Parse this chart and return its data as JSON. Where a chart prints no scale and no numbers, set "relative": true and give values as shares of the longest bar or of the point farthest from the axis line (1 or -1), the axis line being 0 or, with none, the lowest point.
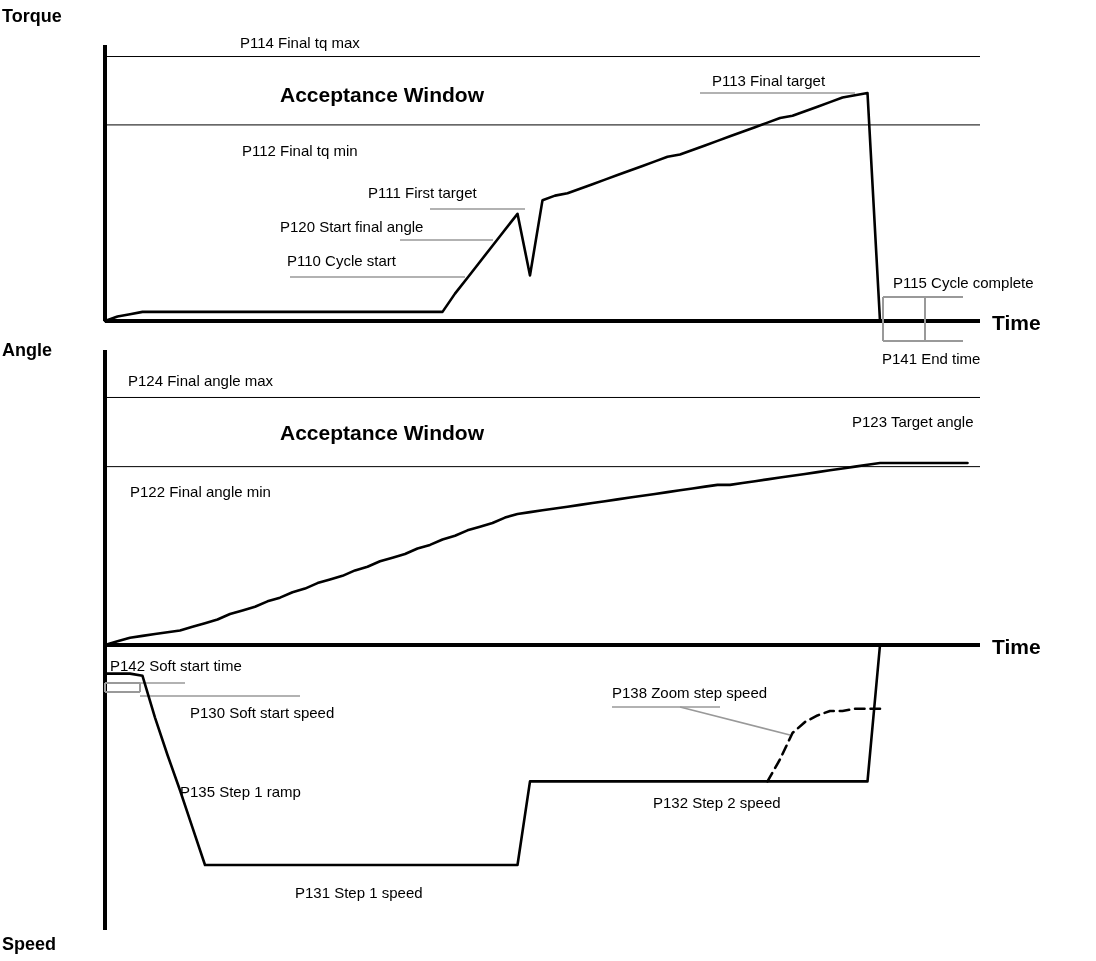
{
  "chart_data": [
    {
      "type": "line",
      "relative": true,
      "ylabel": "Torque",
      "xlabel": "Time",
      "color": "#000000",
      "categories": [
        null,
        null,
        null,
        null,
        null,
        null,
        null,
        null,
        null,
        null,
        null,
        null,
        null,
        null,
        null,
        null,
        null,
        null,
        null,
        null,
        null,
        null,
        null,
        null,
        null,
        null,
        null,
        null,
        null,
        null,
        null,
        null,
        null,
        null,
        null,
        null,
        null,
        null,
        null,
        null,
        null,
        null,
        null,
        null,
        null,
        null,
        null,
        null,
        null,
        null,
        null,
        null,
        null,
        null,
        null,
        null,
        null,
        null,
        null,
        null,
        null,
        null,
        null,
        null,
        null,
        null,
        null,
        null,
        null,
        null,
        null
      ],
      "values": [
        0,
        0.02,
        0.03,
        0.04,
        0.04,
        0.04,
        0.04,
        0.04,
        0.04,
        0.04,
        0.04,
        0.04,
        0.04,
        0.04,
        0.04,
        0.04,
        0.04,
        0.04,
        0.04,
        0.04,
        0.04,
        0.04,
        0.04,
        0.04,
        0.04,
        0.04,
        0.04,
        0.04,
        0.12,
        0.19,
        0.26,
        0.33,
        0.4,
        0.47,
        0.2,
        0.53,
        0.55,
        0.56,
        0.58,
        0.6,
        0.62,
        0.64,
        0.66,
        0.68,
        0.7,
        0.72,
        0.73,
        0.75,
        0.77,
        0.79,
        0.81,
        0.83,
        0.85,
        0.87,
        0.89,
        0.9,
        0.92,
        0.94,
        0.96,
        0.98,
        0.99,
        1,
        0,
        null,
        null,
        null,
        null,
        null,
        null,
        null,
        null
      ],
      "ref_lines": [
        {
          "axis": "y",
          "value": 1.16,
          "label": "P114 Final tq max"
        },
        {
          "axis": "y",
          "value": 0.86,
          "label": "P112 Final tq min"
        }
      ],
      "annotations": [
        "Acceptance Window",
        "P113 Final target",
        "P111 First target",
        "P120 Start final angle",
        "P110 Cycle start",
        "P115 Cycle complete",
        "P141 End time"
      ]
    },
    {
      "type": "line",
      "relative": true,
      "ylabel": "Angle",
      "xlabel": "Time",
      "color": "#000000",
      "categories": [
        null,
        null,
        null,
        null,
        null,
        null,
        null,
        null,
        null,
        null,
        null,
        null,
        null,
        null,
        null,
        null,
        null,
        null,
        null,
        null,
        null,
        null,
        null,
        null,
        null,
        null,
        null,
        null,
        null,
        null,
        null,
        null,
        null,
        null,
        null,
        null,
        null,
        null,
        null,
        null,
        null,
        null,
        null,
        null,
        null,
        null,
        null,
        null,
        null,
        null,
        null,
        null,
        null,
        null,
        null,
        null,
        null,
        null,
        null,
        null,
        null,
        null,
        null,
        null,
        null,
        null,
        null,
        null,
        null,
        null,
        null
      ],
      "values": [
        0,
        0.02,
        0.04,
        0.05,
        0.06,
        0.07,
        0.08,
        0.1,
        0.12,
        0.14,
        0.17,
        0.19,
        0.21,
        0.24,
        0.26,
        0.29,
        0.31,
        0.34,
        0.36,
        0.38,
        0.41,
        0.43,
        0.46,
        0.48,
        0.5,
        0.53,
        0.55,
        0.58,
        0.6,
        0.63,
        0.65,
        0.67,
        0.7,
        0.72,
        0.73,
        0.74,
        0.75,
        0.76,
        0.77,
        0.78,
        0.79,
        0.8,
        0.81,
        0.82,
        0.83,
        0.84,
        0.85,
        0.86,
        0.87,
        0.88,
        0.88,
        0.89,
        0.9,
        0.91,
        0.92,
        0.93,
        0.94,
        0.95,
        0.96,
        0.97,
        0.98,
        0.99,
        1,
        1,
        1,
        1,
        1,
        1,
        1,
        1,
        null
      ],
      "ref_lines": [
        {
          "axis": "y",
          "value": 1.36,
          "label": "P124 Final angle max"
        },
        {
          "axis": "y",
          "value": 0.98,
          "label": "P122 Final angle min"
        }
      ],
      "annotations": [
        "Acceptance Window",
        "P123 Target angle"
      ]
    },
    {
      "type": "line",
      "relative": true,
      "ylabel": "Speed",
      "categories": [
        null,
        null,
        null,
        null,
        null,
        null,
        null,
        null,
        null,
        null,
        null,
        null,
        null,
        null,
        null,
        null,
        null,
        null,
        null,
        null,
        null,
        null,
        null,
        null,
        null,
        null,
        null,
        null,
        null,
        null,
        null,
        null,
        null,
        null,
        null,
        null,
        null,
        null,
        null,
        null,
        null,
        null,
        null,
        null,
        null,
        null,
        null,
        null,
        null,
        null,
        null,
        null,
        null,
        null,
        null,
        null,
        null,
        null,
        null,
        null,
        null,
        null,
        null,
        null,
        null,
        null,
        null,
        null,
        null,
        null,
        null
      ],
      "series": [
        {
          "color": "#000000",
          "values": [
            -0.13,
            -0.13,
            -0.13,
            -0.14,
            -0.33,
            -0.5,
            -0.66,
            -0.83,
            -1,
            -1,
            -1,
            -1,
            -1,
            -1,
            -1,
            -1,
            -1,
            -1,
            -1,
            -1,
            -1,
            -1,
            -1,
            -1,
            -1,
            -1,
            -1,
            -1,
            -1,
            -1,
            -1,
            -1,
            -1,
            -1,
            -0.62,
            -0.62,
            -0.62,
            -0.62,
            -0.62,
            -0.62,
            -0.62,
            -0.62,
            -0.62,
            -0.62,
            -0.62,
            -0.62,
            -0.62,
            -0.62,
            -0.62,
            -0.62,
            -0.62,
            -0.62,
            -0.62,
            -0.62,
            -0.62,
            -0.62,
            -0.62,
            -0.62,
            -0.62,
            -0.62,
            -0.62,
            -0.62,
            0,
            null,
            null,
            null,
            null,
            null,
            null,
            null,
            null
          ]
        },
        {
          "color": "#000000",
          "line_style": "dashed",
          "values": [
            null,
            null,
            null,
            null,
            null,
            null,
            null,
            null,
            null,
            null,
            null,
            null,
            null,
            null,
            null,
            null,
            null,
            null,
            null,
            null,
            null,
            null,
            null,
            null,
            null,
            null,
            null,
            null,
            null,
            null,
            null,
            null,
            null,
            null,
            null,
            null,
            null,
            null,
            null,
            null,
            null,
            null,
            null,
            null,
            null,
            null,
            null,
            null,
            null,
            null,
            null,
            null,
            null,
            -0.62,
            -0.52,
            -0.4,
            -0.35,
            -0.32,
            -0.3,
            -0.3,
            -0.29,
            -0.29,
            -0.29,
            null,
            null,
            null,
            null,
            null,
            null,
            null,
            null
          ]
        }
      ],
      "annotations": [
        "P142 Soft start time",
        "P130 Soft start speed",
        "P135 Step 1 ramp",
        "P138 Zoom step speed",
        "P132 Step 2 speed",
        "P131 Step 1 speed"
      ]
    }
  ]
}
